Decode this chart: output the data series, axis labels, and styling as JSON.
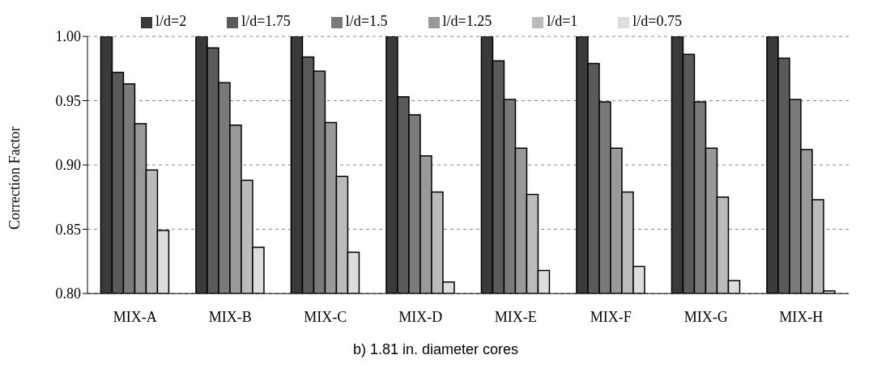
{
  "chart_data": {
    "type": "bar",
    "title": "b) 1.81 in. diameter cores",
    "ylabel": "Correction Factor",
    "categories": [
      "MIX-A",
      "MIX-B",
      "MIX-C",
      "MIX-D",
      "MIX-E",
      "MIX-F",
      "MIX-G",
      "MIX-H"
    ],
    "series": [
      {
        "name": "l/d=2",
        "color": "#3a3a3a",
        "values": [
          1.0,
          1.0,
          1.0,
          1.0,
          1.0,
          1.0,
          1.0,
          1.0
        ]
      },
      {
        "name": "l/d=1.75",
        "color": "#5a5a5a",
        "values": [
          0.972,
          0.991,
          0.984,
          0.953,
          0.981,
          0.979,
          0.986,
          0.983
        ]
      },
      {
        "name": "l/d=1.5",
        "color": "#7a7a7a",
        "values": [
          0.963,
          0.964,
          0.973,
          0.939,
          0.951,
          0.949,
          0.949,
          0.951
        ]
      },
      {
        "name": "l/d=1.25",
        "color": "#999999",
        "values": [
          0.932,
          0.931,
          0.933,
          0.907,
          0.913,
          0.913,
          0.913,
          0.912
        ]
      },
      {
        "name": "l/d=1",
        "color": "#bbbbbb",
        "values": [
          0.896,
          0.888,
          0.891,
          0.879,
          0.877,
          0.879,
          0.875,
          0.873
        ]
      },
      {
        "name": "l/d=0.75",
        "color": "#dddddd",
        "values": [
          0.849,
          0.836,
          0.832,
          0.809,
          0.818,
          0.821,
          0.81,
          0.802
        ]
      }
    ],
    "ylim": [
      0.8,
      1.0
    ],
    "yticks": [
      {
        "value": 0.8,
        "label": "0.80"
      },
      {
        "value": 0.85,
        "label": "0.85"
      },
      {
        "value": 0.9,
        "label": "0.90"
      },
      {
        "value": 0.95,
        "label": "0.95"
      },
      {
        "value": 1.0,
        "label": "1.00"
      }
    ],
    "grid": "y",
    "legend": "top"
  }
}
